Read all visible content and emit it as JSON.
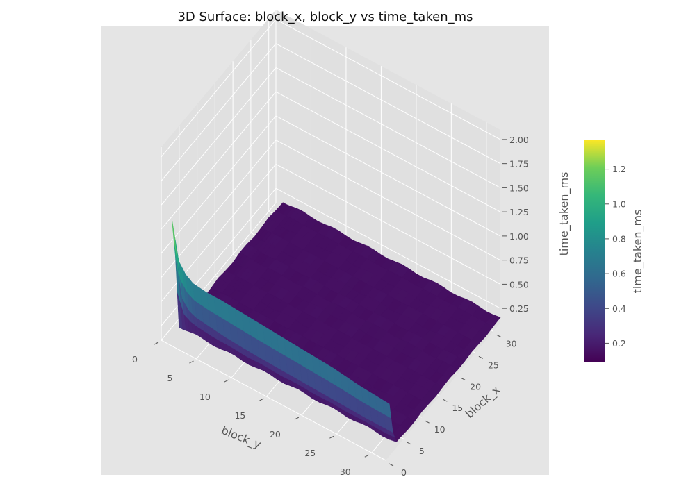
{
  "chart_data": {
    "type": "surface3d",
    "title": "3D Surface: block_x, block_y vs time_taken_ms",
    "x_axis": {
      "label": "block_y",
      "range": [
        0,
        32
      ],
      "ticks": [
        "0",
        "5",
        "10",
        "15",
        "20",
        "25",
        "30"
      ]
    },
    "y_axis": {
      "label": "block_x",
      "range": [
        0,
        32
      ],
      "ticks": [
        "0",
        "5",
        "10",
        "15",
        "20",
        "25",
        "30"
      ]
    },
    "z_axis": {
      "label": "time_taken_ms",
      "range": [
        0.1,
        2.1
      ],
      "ticks": [
        "0.25",
        "0.50",
        "0.75",
        "1.00",
        "1.25",
        "1.50",
        "1.75",
        "2.00"
      ]
    },
    "colorbar": {
      "label": "time_taken_ms",
      "range": [
        0.09,
        1.37
      ],
      "ticks": [
        "0.2",
        "0.4",
        "0.6",
        "0.8",
        "1.0",
        "1.2"
      ]
    },
    "colormap": "viridis",
    "style": "ggplot",
    "grid": true,
    "surface_profile": {
      "block_y_values": [
        1,
        2,
        3,
        4,
        6,
        8,
        12,
        16,
        20,
        24,
        28,
        32
      ],
      "block_x_1_time_ms": [
        1.35,
        0.95,
        0.85,
        0.8,
        0.78,
        0.78,
        0.76,
        0.74,
        0.72,
        0.7,
        0.66,
        0.64
      ],
      "block_x_2_time_ms": [
        0.92,
        0.52,
        0.43,
        0.4,
        0.38,
        0.36,
        0.34,
        0.33,
        0.32,
        0.31,
        0.3,
        0.3
      ],
      "block_x_3_to_32_time_ms": 0.15
    }
  },
  "colors": {
    "panel_bg": "#e5e5e5",
    "grid": "#ffffff",
    "tick_text": "#555555",
    "title_text": "#111111"
  }
}
